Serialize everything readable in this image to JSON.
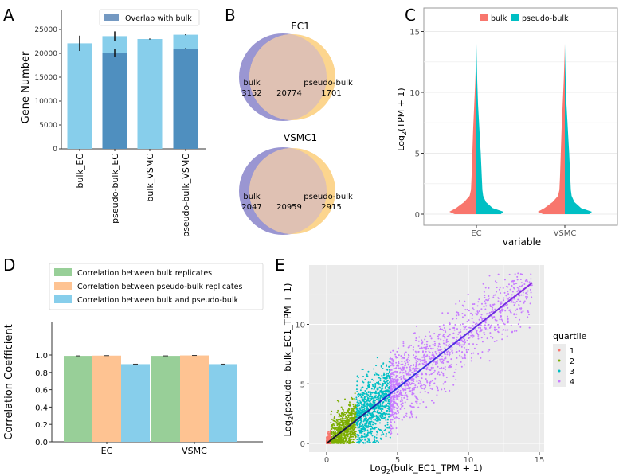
{
  "panel_labels": [
    "A",
    "B",
    "C",
    "D",
    "E"
  ],
  "chart_data": [
    {
      "panel": "A",
      "type": "bar",
      "ylabel": "Gene Number",
      "ylim": [
        0,
        28000
      ],
      "yticks": [
        0,
        5000,
        10000,
        15000,
        20000,
        25000
      ],
      "categories": [
        "bulk_EC",
        "pseudo-bulk_EC",
        "bulk_VSMC",
        "pseudo-bulk_VSMC"
      ],
      "values": [
        22100,
        23600,
        23000,
        23900
      ],
      "errors": [
        1600,
        1000,
        100,
        100
      ],
      "series": [
        {
          "name": "Overlap with bulk",
          "values": [
            null,
            20100,
            null,
            21000
          ],
          "errors": [
            null,
            800,
            null,
            100
          ]
        }
      ],
      "colors": {
        "total": "#87ceeb",
        "overlap": "#4f8fbf",
        "legend": "#7499c2"
      },
      "legend": "top-right"
    },
    {
      "panel": "B",
      "type": "venn",
      "diagrams": [
        {
          "title": "EC1",
          "left_label": "bulk",
          "left_only": "3152",
          "both": "20774",
          "right_label": "pseudo-bulk",
          "right_only": "1701"
        },
        {
          "title": "VSMC1",
          "left_label": "bulk",
          "left_only": "2047",
          "both": "20959",
          "right_label": "pseudo-bulk",
          "right_only": "2915"
        }
      ],
      "colors": {
        "left": "#9a96d2",
        "right": "#fcd58e",
        "overlap": "#dfc1b3"
      }
    },
    {
      "panel": "C",
      "type": "violin",
      "xlabel": "variable",
      "ylabel": "Log2(TPM + 1)",
      "ylim": [
        -0.5,
        16.5
      ],
      "yticks": [
        0,
        5,
        10,
        15
      ],
      "categories": [
        "EC",
        "VSMC"
      ],
      "series": [
        {
          "name": "bulk",
          "color": "#f8766d"
        },
        {
          "name": "pseudo-bulk",
          "color": "#00bfc4"
        }
      ],
      "density_profile": {
        "y": [
          0,
          0.2,
          0.5,
          1,
          1.5,
          2,
          3,
          5,
          7,
          9,
          11,
          13,
          14
        ],
        "bulk": [
          0.8,
          1,
          0.75,
          0.45,
          0.25,
          0.2,
          0.18,
          0.15,
          0.12,
          0.08,
          0.04,
          0.01,
          0
        ],
        "pseudo-bulk": [
          0.9,
          1,
          0.6,
          0.35,
          0.25,
          0.22,
          0.2,
          0.16,
          0.11,
          0.06,
          0.03,
          0.01,
          0
        ]
      },
      "legend": "top"
    },
    {
      "panel": "D",
      "type": "bar",
      "ylabel": "Correlation Coefficient",
      "ylim": [
        0,
        1.05
      ],
      "yticks": [
        "0.0",
        "0.2",
        "0.4",
        "0.6",
        "0.8",
        "1.0"
      ],
      "categories": [
        "EC",
        "VSMC"
      ],
      "series": [
        {
          "name": "Correlation between bulk replicates",
          "color": "#98cf98",
          "values": [
            0.99,
            0.99
          ]
        },
        {
          "name": "Correlation between pseudo-bulk replicates",
          "color": "#fec392",
          "values": [
            0.993,
            0.995
          ]
        },
        {
          "name": "Correlation between bulk and pseudo-bulk",
          "color": "#87ceeb",
          "values": [
            0.895,
            0.895
          ]
        }
      ],
      "legend": "top"
    },
    {
      "panel": "E",
      "type": "scatter",
      "xlabel": "Log2(bulk_EC1_TPM + 1)",
      "ylabel": "Log2(pseudo−bulk_EC1_TPM + 1)",
      "xlim": [
        -0.8,
        16
      ],
      "ylim": [
        -0.8,
        15
      ],
      "xticks": [
        0,
        5,
        10,
        15
      ],
      "yticks": [
        0,
        5,
        10
      ],
      "legend_title": "quartile",
      "quartiles": [
        "1",
        "2",
        "3",
        "4"
      ],
      "quartile_x_bounds": [
        0,
        0.3,
        2.1,
        4.5,
        14.5
      ],
      "colors": [
        "#f8766d",
        "#7cae00",
        "#00bfc4",
        "#c77cff"
      ],
      "trend_line": {
        "x": [
          0,
          14.5
        ],
        "y": [
          0,
          13.5
        ]
      },
      "legend": "right"
    }
  ]
}
